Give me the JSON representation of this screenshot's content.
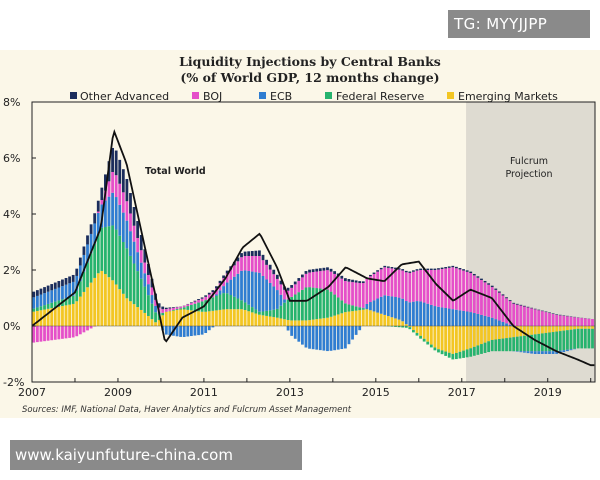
{
  "watermarks": {
    "top": "TG: MYYJJPP",
    "bottom": "www.kaiyunfuture-china.com"
  },
  "chart_data": {
    "type": "bar",
    "stacked": true,
    "title": "Liquidity Injections by Central Banks",
    "subtitle": "(% of World GDP, 12 months change)",
    "xlabel": "",
    "ylabel": "",
    "xlim": [
      2007.0,
      2020.1
    ],
    "ylim": [
      -2,
      8
    ],
    "x_ticks": [
      2007,
      2009,
      2011,
      2013,
      2015,
      2017,
      2019
    ],
    "y_ticks": [
      8,
      6,
      4,
      2,
      0,
      -2
    ],
    "y_tick_labels": [
      "8%",
      "6%",
      "4%",
      "2%",
      "0%",
      "-2%"
    ],
    "legend": [
      "Other Advanced",
      "BOJ",
      "ECB",
      "Federal Reserve",
      "Emerging Markets"
    ],
    "legend_position": "top",
    "colors": {
      "Other Advanced": "#1b2d5c",
      "BOJ": "#e54fc9",
      "ECB": "#2f7dd1",
      "Federal Reserve": "#26b36e",
      "Emerging Markets": "#f3c623",
      "Total World": "#111111",
      "projection": "#dedbd1"
    },
    "projection": {
      "start": 2017.1,
      "end": 2020.1,
      "label_line1": "Fulcrum",
      "label_line2": "Projection"
    },
    "total_label": "Total World",
    "source": "Sources: IMF, National Data, Haver Analytics and Fulcrum Asset Management",
    "knots": {
      "x": [
        2007.0,
        2008.0,
        2008.6,
        2008.9,
        2009.2,
        2009.6,
        2009.9,
        2010.1,
        2010.5,
        2011.0,
        2011.5,
        2011.9,
        2012.3,
        2012.7,
        2013.0,
        2013.4,
        2013.9,
        2014.3,
        2014.8,
        2015.2,
        2015.6,
        2016.0,
        2016.4,
        2016.8,
        2017.2,
        2017.7,
        2018.2,
        2018.7,
        2019.2,
        2019.7,
        2020.0
      ],
      "oth": [
        0.2,
        0.25,
        0.4,
        0.9,
        0.8,
        0.5,
        0.2,
        0.05,
        0.0,
        0.05,
        0.1,
        0.15,
        0.2,
        0.15,
        0.1,
        0.1,
        0.1,
        0.1,
        0.05,
        0.05,
        0.05,
        0.05,
        0.05,
        0.05,
        0.05,
        0.05,
        0.03,
        0.02,
        0.02,
        0.01,
        0.0
      ],
      "boj": [
        -0.6,
        -0.4,
        0.1,
        0.8,
        0.7,
        0.4,
        0.2,
        0.1,
        0.05,
        0.1,
        0.3,
        0.5,
        0.6,
        0.4,
        0.3,
        0.5,
        0.7,
        0.8,
        0.9,
        1.0,
        1.0,
        1.1,
        1.3,
        1.5,
        1.4,
        1.1,
        0.8,
        0.6,
        0.4,
        0.3,
        0.25
      ],
      "ecb": [
        0.4,
        0.5,
        0.8,
        1.2,
        1.0,
        0.5,
        0.2,
        -0.3,
        -0.4,
        -0.3,
        0.3,
        1.1,
        1.4,
        0.7,
        -0.3,
        -0.8,
        -0.9,
        -0.8,
        0.2,
        0.7,
        0.8,
        0.9,
        0.7,
        0.6,
        0.5,
        0.3,
        0.0,
        -0.1,
        -0.1,
        0.0,
        0.0
      ],
      "fed": [
        0.1,
        0.3,
        1.5,
        2.0,
        1.8,
        1.0,
        0.3,
        0.0,
        0.05,
        0.4,
        0.6,
        0.3,
        0.1,
        0.3,
        0.8,
        1.2,
        1.0,
        0.3,
        0.0,
        0.0,
        -0.05,
        -0.1,
        -0.1,
        -0.2,
        -0.3,
        -0.4,
        -0.5,
        -0.6,
        -0.7,
        -0.7,
        -0.7
      ],
      "em": [
        0.5,
        0.8,
        2.0,
        1.6,
        1.0,
        0.5,
        0.1,
        0.5,
        0.6,
        0.5,
        0.6,
        0.6,
        0.4,
        0.3,
        0.2,
        0.2,
        0.3,
        0.5,
        0.6,
        0.4,
        0.2,
        -0.3,
        -0.8,
        -1.0,
        -0.8,
        -0.5,
        -0.4,
        -0.3,
        -0.2,
        -0.1,
        -0.1
      ],
      "total": [
        0.0,
        1.2,
        3.5,
        7.0,
        5.8,
        3.0,
        0.9,
        -0.6,
        0.3,
        0.7,
        1.7,
        2.8,
        3.3,
        2.1,
        0.9,
        0.9,
        1.4,
        2.1,
        1.7,
        1.6,
        2.2,
        2.3,
        1.5,
        0.9,
        1.3,
        1.0,
        0.0,
        -0.5,
        -0.9,
        -1.2,
        -1.4
      ]
    }
  }
}
